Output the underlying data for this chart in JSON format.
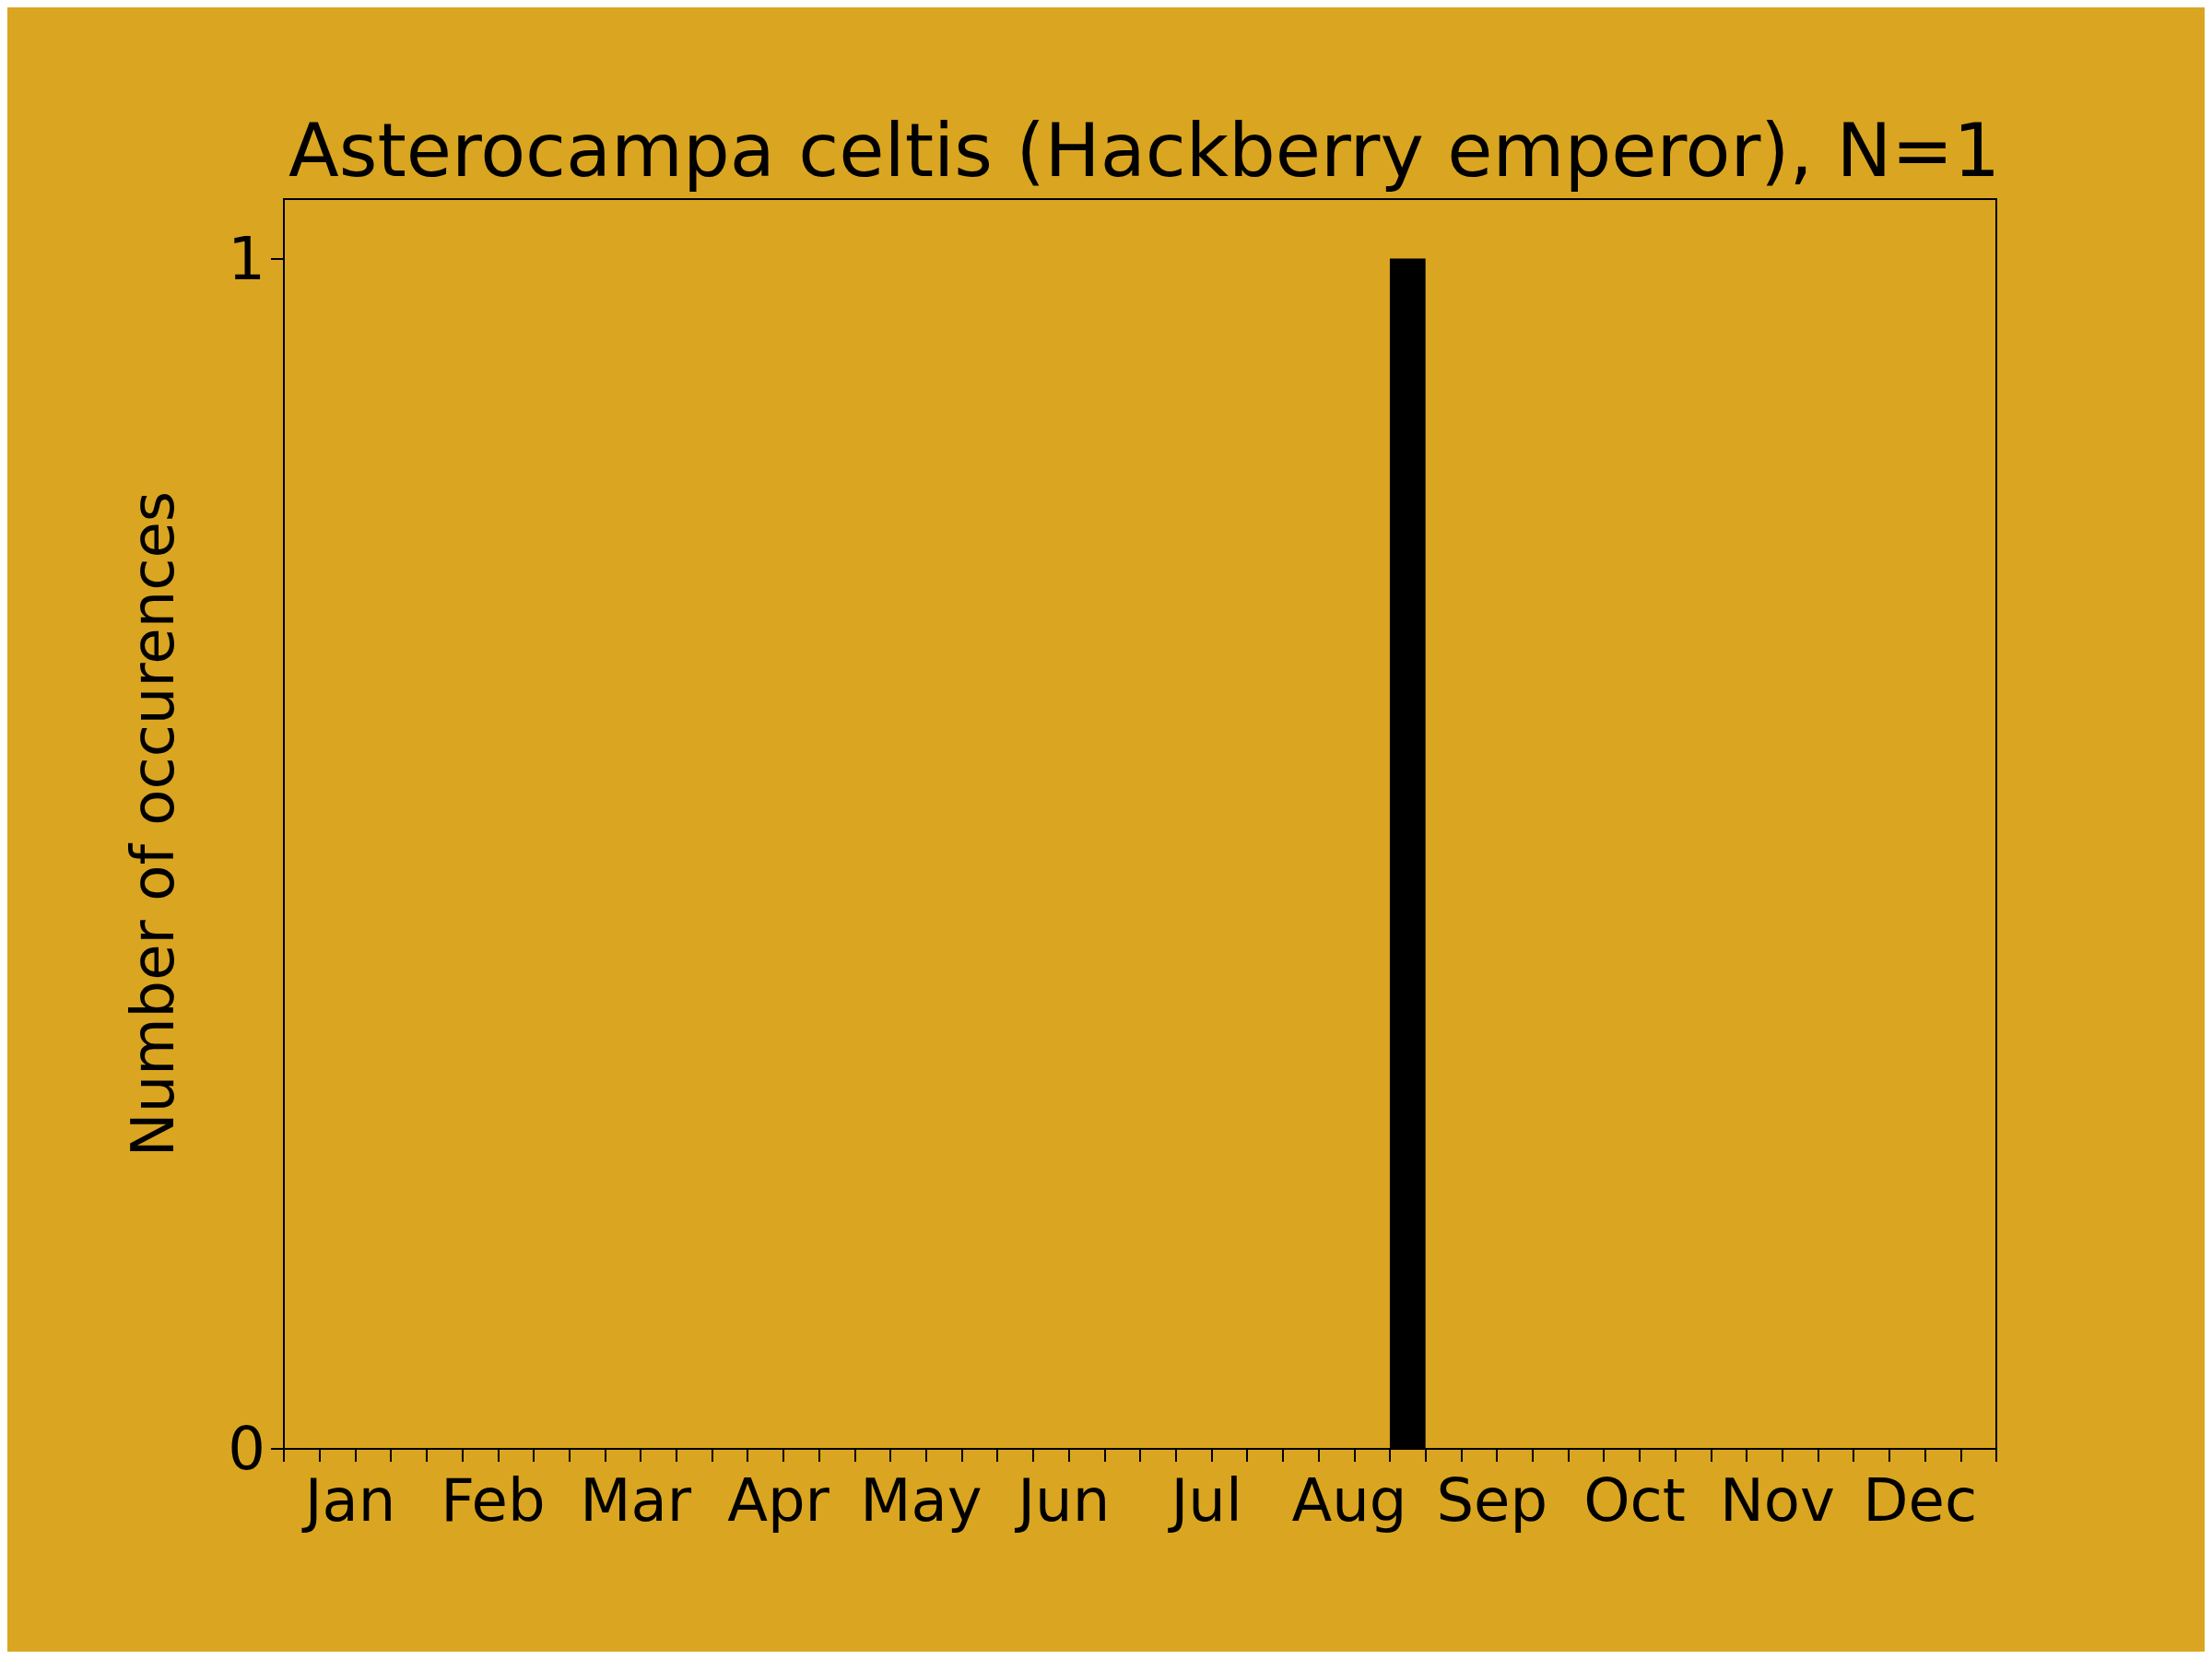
{
  "chart_data": {
    "type": "bar",
    "title": "Asterocampa celtis (Hackberry emperor), N=1",
    "ylabel": "Number of occurences",
    "categories": [
      null,
      "Jan",
      null,
      null,
      null,
      "Feb",
      null,
      null,
      null,
      "Mar",
      null,
      null,
      null,
      "Apr",
      null,
      null,
      null,
      "May",
      null,
      null,
      null,
      "Jun",
      null,
      null,
      null,
      "Jul",
      null,
      null,
      null,
      "Aug",
      null,
      null,
      null,
      "Sep",
      null,
      null,
      null,
      "Oct",
      null,
      null,
      null,
      "Nov",
      null,
      null,
      null,
      "Dec",
      null,
      null
    ],
    "values": [
      0,
      0,
      0,
      0,
      0,
      0,
      0,
      0,
      0,
      0,
      0,
      0,
      0,
      0,
      0,
      0,
      0,
      0,
      0,
      0,
      0,
      0,
      0,
      0,
      0,
      0,
      0,
      0,
      0,
      0,
      0,
      1,
      0,
      0,
      0,
      0,
      0,
      0,
      0,
      0,
      0,
      0,
      0,
      0,
      0,
      0,
      0,
      0
    ],
    "color": "#000000",
    "ylim": [
      0,
      1.05
    ],
    "yticks": [
      0,
      1
    ],
    "grid": false
  }
}
